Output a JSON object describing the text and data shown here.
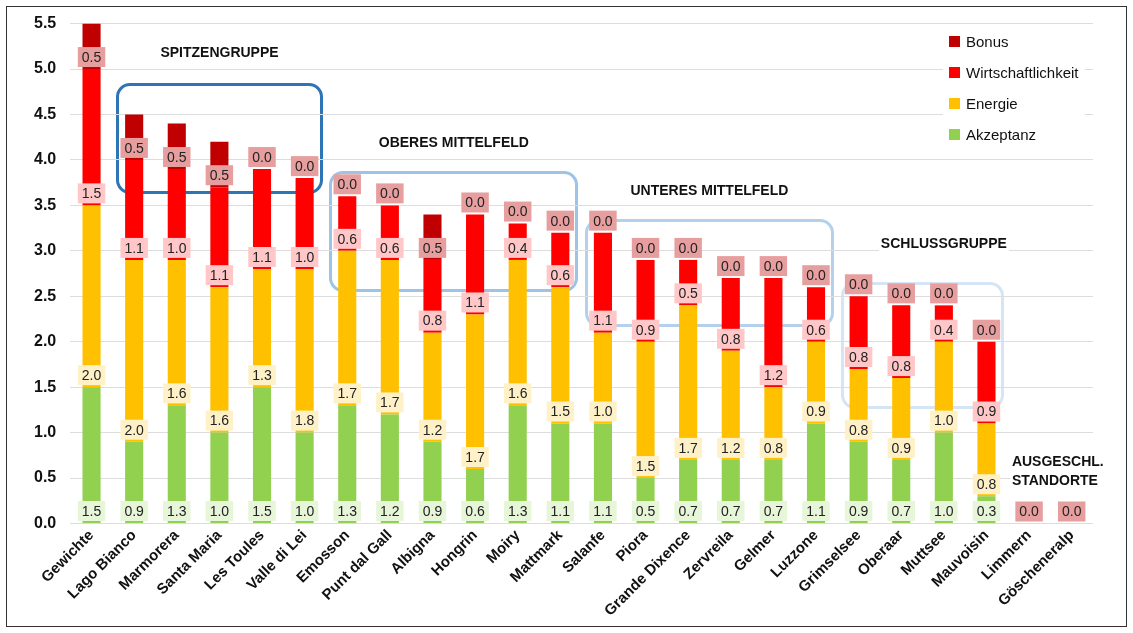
{
  "chart_data": {
    "type": "bar",
    "stacked": true,
    "categories": [
      "Gewichte",
      "Lago Bianco",
      "Marmorera",
      "Santa Maria",
      "Les Toules",
      "Valle di Lei",
      "Emosson",
      "Punt dal Gall",
      "Albigna",
      "Hongrin",
      "Moiry",
      "Mattmark",
      "Salanfe",
      "Piora",
      "Grande Dixence",
      "Zervreila",
      "Gelmer",
      "Luzzone",
      "Grimselsee",
      "Oberaar",
      "Muttsee",
      "Mauvoisin",
      "Limmern",
      "Göscheneralp"
    ],
    "series": [
      {
        "name": "Akzeptanz",
        "color": "#92d050",
        "values": [
          1.5,
          0.9,
          1.3,
          1.0,
          1.5,
          1.0,
          1.3,
          1.2,
          0.9,
          0.6,
          1.3,
          1.1,
          1.1,
          0.5,
          0.7,
          0.7,
          0.7,
          1.1,
          0.9,
          0.7,
          1.0,
          0.3,
          null,
          null
        ],
        "value_labels": [
          "1.5",
          "0.9",
          "1.3",
          "1.0",
          "1.5",
          "1.0",
          "1.3",
          "1.2",
          "0.9",
          "0.6",
          "1.3",
          "1.1",
          "1.1",
          "0.5",
          "0.7",
          "0.7",
          "0.7",
          "1.1",
          "0.9",
          "0.7",
          "1.0",
          "0.3",
          null,
          null
        ]
      },
      {
        "name": "Energie",
        "color": "#ffc000",
        "values": [
          2.0,
          2.0,
          1.6,
          1.6,
          1.3,
          1.8,
          1.7,
          1.7,
          1.2,
          1.7,
          1.6,
          1.5,
          1.0,
          1.5,
          1.7,
          1.2,
          0.8,
          0.9,
          0.8,
          0.9,
          1.0,
          0.8,
          null,
          null
        ],
        "value_labels": [
          "2.0",
          "2.0",
          "1.6",
          "1.6",
          "1.3",
          "1.8",
          "1.7",
          "1.7",
          "1.2",
          "1.7",
          "1.6",
          "1.5",
          "1.0",
          "1.5",
          "1.7",
          "1.2",
          "0.8",
          "0.9",
          "0.8",
          "0.9",
          "1.0",
          "0.8",
          null,
          null
        ]
      },
      {
        "name": "Wirtschaftlichkeit",
        "color": "#ff0000",
        "values": [
          1.5,
          1.1,
          1.0,
          1.1,
          1.1,
          1.0,
          0.6,
          0.6,
          0.8,
          1.1,
          0.4,
          0.6,
          1.1,
          0.9,
          0.5,
          0.8,
          1.2,
          0.6,
          0.8,
          0.8,
          0.4,
          0.9,
          null,
          null
        ],
        "value_labels": [
          "1.5",
          "1.1",
          "1.0",
          "1.1",
          "1.1",
          "1.0",
          "0.6",
          "0.6",
          "0.8",
          "1.1",
          "0.4",
          "0.6",
          "1.1",
          "0.9",
          "0.5",
          "0.8",
          "1.2",
          "0.6",
          "0.8",
          "0.8",
          "0.4",
          "0.9",
          null,
          null
        ]
      },
      {
        "name": "Bonus",
        "color": "#c00000",
        "values": [
          0.5,
          0.5,
          0.5,
          0.5,
          0,
          0,
          0,
          0,
          0.5,
          0,
          0,
          0,
          0,
          0,
          0,
          0,
          0,
          0,
          0,
          0,
          0,
          0,
          0,
          0
        ],
        "value_labels": [
          "0.5",
          "0.5",
          "0.5",
          "0.5",
          "0.0",
          "0.0",
          "0.0",
          "0.0",
          "0.5",
          "0.0",
          "0.0",
          "0.0",
          "0.0",
          "0.0",
          "0.0",
          "0.0",
          "0.0",
          "0.0",
          "0.0",
          "0.0",
          "0.0",
          "0.0",
          "0.0",
          "0.0"
        ]
      }
    ],
    "ylim": [
      0,
      5.5
    ],
    "yticks": [
      {
        "value": 0,
        "label": "0.0"
      },
      0.5,
      {
        "value": 1,
        "label": "1.0"
      },
      1.5,
      {
        "value": 2,
        "label": "2.0"
      },
      2.5,
      {
        "value": 3,
        "label": "3.0"
      },
      3.5,
      {
        "value": 4,
        "label": "4.0"
      },
      4.5,
      {
        "value": 5,
        "label": "5.0"
      },
      5.5
    ],
    "grid": "y",
    "legend": "top right",
    "annotations": [
      "SPITZENGRUPPE",
      "OBERES MITTELFELD",
      "UNTERES MITTELFELD",
      "SCHLUSSGRUPPE",
      "AUSGESCHL. STANDORTE"
    ]
  }
}
